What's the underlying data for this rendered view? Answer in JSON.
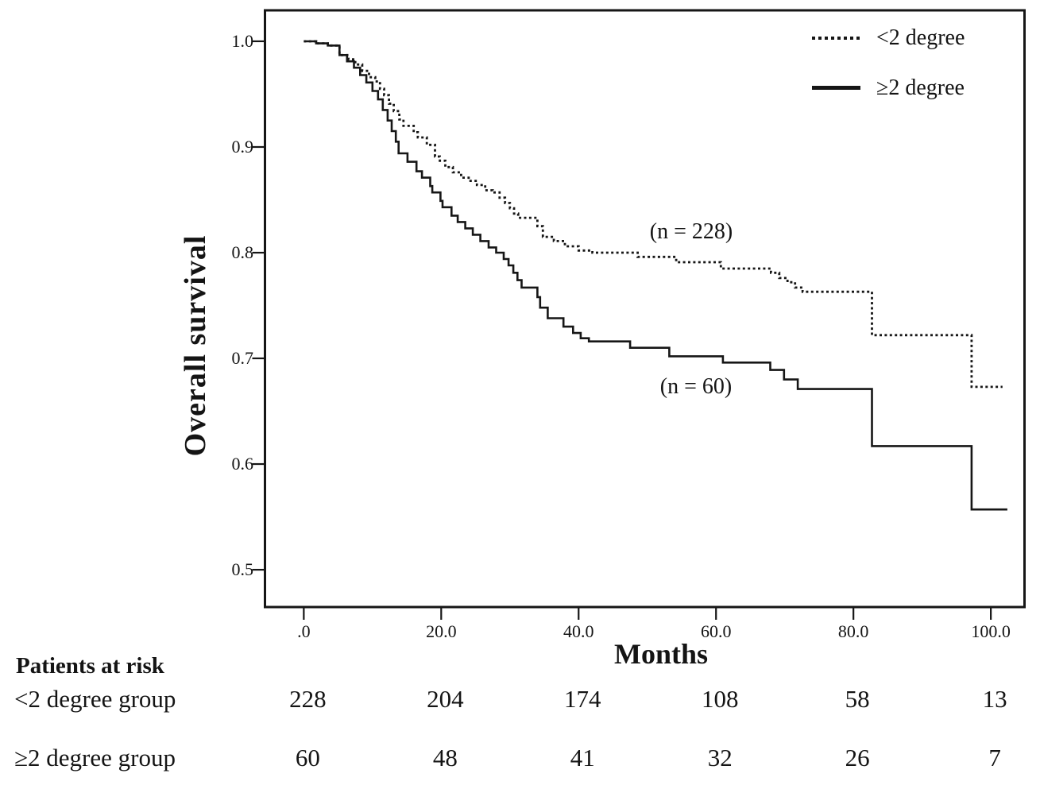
{
  "chart_data": {
    "type": "line",
    "subtype": "kaplan-meier-step",
    "title": "",
    "xlabel": "Months",
    "ylabel": "Overall survival",
    "xlim": [
      -5.65,
      104.9
    ],
    "ylim": [
      0.4647,
      1.0293
    ],
    "x_ticks": [
      0,
      20,
      40,
      60,
      80,
      100
    ],
    "x_tick_labels": [
      ".0",
      "20.0",
      "40.0",
      "60.0",
      "80.0",
      "100.0"
    ],
    "y_ticks": [
      1.0,
      0.9,
      0.8,
      0.7,
      0.6,
      0.5
    ],
    "y_tick_labels": [
      "1.0",
      "0.9",
      "0.8",
      "0.7",
      "0.6",
      "0.5"
    ],
    "grid": false,
    "legend_position": "top-right-inside",
    "line_color": "#161616",
    "series": [
      {
        "name": "lt2-degree",
        "label": "<2 degree",
        "style": "dotted",
        "n_label": "(n = 228)",
        "points": [
          [
            0,
            1.0
          ],
          [
            1.8,
            0.998
          ],
          [
            3.5,
            0.996
          ],
          [
            5.2,
            0.987
          ],
          [
            6.5,
            0.983
          ],
          [
            7.5,
            0.978
          ],
          [
            8.5,
            0.972
          ],
          [
            9.5,
            0.966
          ],
          [
            10.4,
            0.962
          ],
          [
            11.1,
            0.955
          ],
          [
            11.7,
            0.949
          ],
          [
            12.4,
            0.941
          ],
          [
            13.1,
            0.934
          ],
          [
            13.9,
            0.926
          ],
          [
            14.5,
            0.92
          ],
          [
            16.0,
            0.914
          ],
          [
            16.6,
            0.909
          ],
          [
            17.9,
            0.902
          ],
          [
            19.1,
            0.891
          ],
          [
            19.8,
            0.887
          ],
          [
            20.6,
            0.881
          ],
          [
            21.7,
            0.876
          ],
          [
            22.9,
            0.871
          ],
          [
            24.0,
            0.868
          ],
          [
            25.2,
            0.864
          ],
          [
            26.4,
            0.859
          ],
          [
            27.5,
            0.857
          ],
          [
            28.5,
            0.852
          ],
          [
            29.3,
            0.847
          ],
          [
            30.0,
            0.842
          ],
          [
            30.6,
            0.837
          ],
          [
            31.2,
            0.833
          ],
          [
            34.0,
            0.825
          ],
          [
            34.8,
            0.815
          ],
          [
            36.4,
            0.811
          ],
          [
            38.0,
            0.806
          ],
          [
            40.0,
            0.802
          ],
          [
            42.0,
            0.8
          ],
          [
            48.6,
            0.796
          ],
          [
            54.2,
            0.791
          ],
          [
            60.7,
            0.785
          ],
          [
            68.0,
            0.781
          ],
          [
            69.2,
            0.776
          ],
          [
            70.4,
            0.772
          ],
          [
            71.5,
            0.767
          ],
          [
            72.6,
            0.763
          ],
          [
            82.7,
            0.722
          ],
          [
            97.2,
            0.673
          ],
          [
            101.7,
            0.673
          ]
        ]
      },
      {
        "name": "ge2-degree",
        "label": "≥2 degree",
        "style": "solid",
        "n_label": "(n = 60)",
        "points": [
          [
            0,
            1.0
          ],
          [
            1.8,
            0.998
          ],
          [
            3.5,
            0.996
          ],
          [
            5.2,
            0.987
          ],
          [
            6.3,
            0.981
          ],
          [
            7.3,
            0.975
          ],
          [
            8.2,
            0.968
          ],
          [
            9.1,
            0.961
          ],
          [
            10.0,
            0.953
          ],
          [
            10.8,
            0.945
          ],
          [
            11.5,
            0.935
          ],
          [
            12.2,
            0.925
          ],
          [
            12.8,
            0.915
          ],
          [
            13.4,
            0.905
          ],
          [
            13.8,
            0.894
          ],
          [
            15.1,
            0.886
          ],
          [
            16.4,
            0.877
          ],
          [
            17.2,
            0.871
          ],
          [
            18.4,
            0.863
          ],
          [
            18.7,
            0.857
          ],
          [
            19.9,
            0.849
          ],
          [
            20.2,
            0.843
          ],
          [
            21.5,
            0.835
          ],
          [
            22.4,
            0.829
          ],
          [
            23.5,
            0.823
          ],
          [
            24.6,
            0.817
          ],
          [
            25.7,
            0.811
          ],
          [
            26.9,
            0.805
          ],
          [
            28.0,
            0.8
          ],
          [
            29.1,
            0.794
          ],
          [
            29.8,
            0.788
          ],
          [
            30.5,
            0.781
          ],
          [
            31.1,
            0.774
          ],
          [
            31.7,
            0.767
          ],
          [
            34.0,
            0.758
          ],
          [
            34.4,
            0.748
          ],
          [
            35.5,
            0.738
          ],
          [
            37.8,
            0.73
          ],
          [
            39.2,
            0.724
          ],
          [
            40.3,
            0.719
          ],
          [
            41.5,
            0.716
          ],
          [
            47.5,
            0.71
          ],
          [
            53.2,
            0.702
          ],
          [
            61.0,
            0.696
          ],
          [
            67.9,
            0.689
          ],
          [
            69.9,
            0.68
          ],
          [
            71.9,
            0.671
          ],
          [
            82.7,
            0.617
          ],
          [
            97.2,
            0.557
          ],
          [
            102.4,
            0.557
          ]
        ]
      }
    ],
    "risk_table": {
      "title": "Patients at risk",
      "times": [
        0,
        20,
        40,
        60,
        80,
        100
      ],
      "rows": [
        {
          "label": "<2 degree group",
          "counts": [
            228,
            204,
            174,
            108,
            58,
            13
          ]
        },
        {
          "label": "≥2 degree group",
          "counts": [
            60,
            48,
            41,
            32,
            26,
            7
          ]
        }
      ]
    }
  }
}
